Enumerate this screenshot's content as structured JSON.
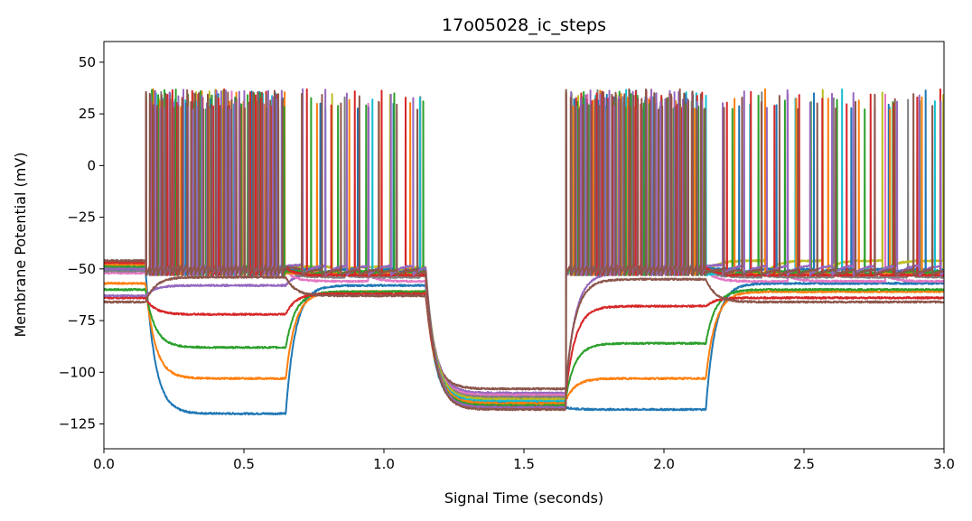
{
  "chart_data": {
    "type": "line",
    "title": "17o05028_ic_steps",
    "xlabel": "Signal Time (seconds)",
    "ylabel": "Membrane Potential (mV)",
    "xlim": [
      0,
      3.0
    ],
    "ylim": [
      -137,
      60
    ],
    "xticks": [
      0.0,
      0.5,
      1.0,
      1.5,
      2.0,
      2.5,
      3.0
    ],
    "xtick_labels": [
      "0.0",
      "0.5",
      "1.0",
      "1.5",
      "2.0",
      "2.5",
      "3.0"
    ],
    "yticks": [
      50,
      25,
      0,
      -25,
      -50,
      -75,
      -100,
      -125
    ],
    "ytick_labels": [
      "50",
      "25",
      "0",
      "−25",
      "−50",
      "−75",
      "−100",
      "−125"
    ],
    "grid": false,
    "legend": "none",
    "protocol_epochs": {
      "sweep_start": 0.15,
      "epoch1_end": 0.65,
      "epoch2_end": 1.15,
      "epoch3_end": 1.65,
      "epoch4_end": 2.15,
      "sweep_end": 3.0
    },
    "series": [
      {
        "color": "#1f77b4",
        "baseline": -50,
        "step1": -120,
        "step2": -58,
        "step3": -117,
        "step4": -118,
        "step5": -57,
        "spike_rate": 0
      },
      {
        "color": "#ff7f0e",
        "baseline": -57,
        "step1": -103,
        "step2": -61,
        "step3": -114,
        "step4": -103,
        "step5": -61,
        "spike_rate": 0
      },
      {
        "color": "#2ca02c",
        "baseline": -60,
        "step1": -88,
        "step2": -61,
        "step3": -113,
        "step4": -86,
        "step5": -60,
        "spike_rate": 0
      },
      {
        "color": "#d62728",
        "baseline": -64,
        "step1": -72,
        "step2": -62,
        "step3": -112,
        "step4": -68,
        "step5": -64,
        "spike_rate": 0
      },
      {
        "color": "#9467bd",
        "baseline": -63,
        "step1": -58,
        "step2": -52,
        "step3": -110,
        "step4": -52,
        "step5": -52,
        "spike_rate": 0
      },
      {
        "color": "#8c564b",
        "baseline": -66,
        "step1": -54,
        "step2": -63,
        "step3": -108,
        "step4": -55,
        "step5": -66,
        "spike_rate": 0
      },
      {
        "color": "#e377c2",
        "baseline": -52,
        "step1": -50,
        "step2": -56,
        "step3": -111,
        "step4": -50,
        "step5": -56,
        "spike_rate": 6
      },
      {
        "color": "#7f7f7f",
        "baseline": -51,
        "step1": -49,
        "step2": -54,
        "step3": -112,
        "step4": -49,
        "step5": -54,
        "spike_rate": 8
      },
      {
        "color": "#bcbd22",
        "baseline": -48,
        "step1": -47,
        "step2": -49,
        "step3": -113,
        "step4": -47,
        "step5": -46,
        "spike_rate": 10
      },
      {
        "color": "#17becf",
        "baseline": -47,
        "step1": -46,
        "step2": -52,
        "step3": -114,
        "step4": -46,
        "step5": -52,
        "spike_rate": 13
      },
      {
        "color": "#1f77b4",
        "baseline": -50,
        "step1": -45,
        "step2": -50,
        "step3": -115,
        "step4": -45,
        "step5": -50,
        "spike_rate": 16
      },
      {
        "color": "#ff7f0e",
        "baseline": -48,
        "step1": -44,
        "step2": -52,
        "step3": -115,
        "step4": -44,
        "step5": -52,
        "spike_rate": 19
      },
      {
        "color": "#2ca02c",
        "baseline": -49,
        "step1": -43,
        "step2": -51,
        "step3": -116,
        "step4": -43,
        "step5": -51,
        "spike_rate": 22
      },
      {
        "color": "#d62728",
        "baseline": -47,
        "step1": -42,
        "step2": -53,
        "step3": -117,
        "step4": -42,
        "step5": -53,
        "spike_rate": 25
      },
      {
        "color": "#9467bd",
        "baseline": -50,
        "step1": -41,
        "step2": -48,
        "step3": -117,
        "step4": -41,
        "step5": -48,
        "spike_rate": 28
      },
      {
        "color": "#8c564b",
        "baseline": -46,
        "step1": -40,
        "step2": -50,
        "step3": -118,
        "step4": -40,
        "step5": -50,
        "spike_rate": 32
      }
    ]
  }
}
